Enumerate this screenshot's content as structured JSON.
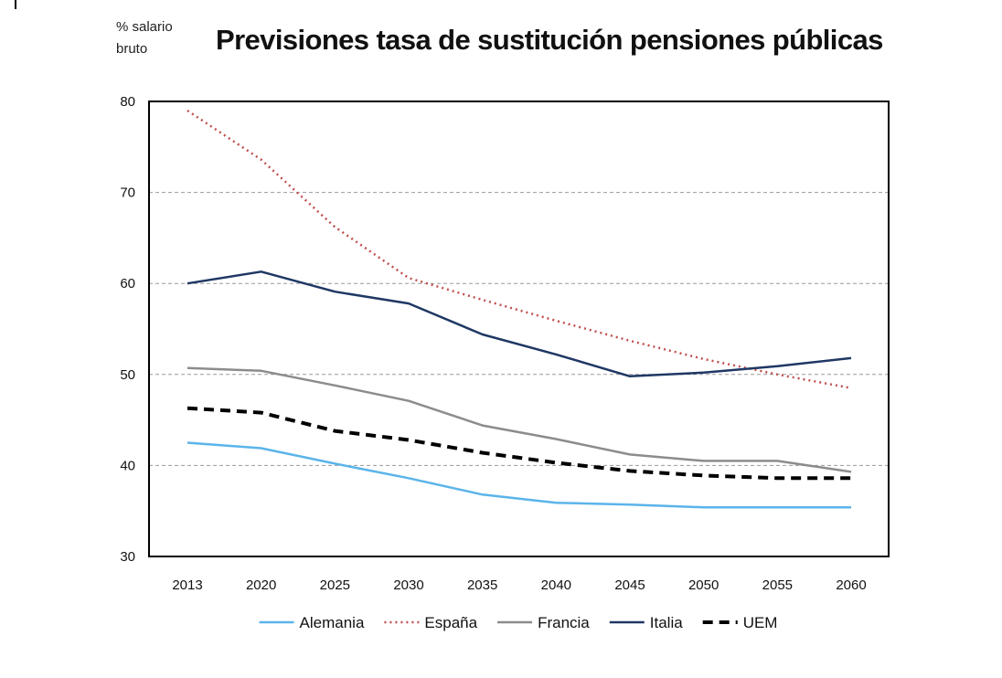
{
  "chart_data": {
    "type": "line",
    "title": "Previsiones tasa de sustitución pensiones públicas",
    "unit_label": [
      "% salario",
      "bruto"
    ],
    "xlabel": "",
    "ylabel": "",
    "x": [
      "2013",
      "2020",
      "2025",
      "2030",
      "2035",
      "2040",
      "2045",
      "2050",
      "2055",
      "2060"
    ],
    "ylim": [
      30,
      80
    ],
    "yticks": [
      30,
      40,
      50,
      60,
      70,
      80
    ],
    "grid": "horizontal dashed",
    "legend_position": "bottom",
    "series": [
      {
        "name": "Alemania",
        "color": "#5bb4ea",
        "style": "solid",
        "values": [
          42.5,
          41.9,
          40.2,
          38.6,
          36.8,
          35.9,
          35.7,
          35.4,
          35.4,
          35.4
        ]
      },
      {
        "name": "España",
        "color": "#c0504d",
        "style": "dotted",
        "values": [
          79.0,
          73.6,
          66.2,
          60.6,
          58.2,
          55.9,
          53.7,
          51.7,
          50.0,
          48.5
        ]
      },
      {
        "name": "Francia",
        "color": "#8c8c8c",
        "style": "solid",
        "values": [
          50.7,
          50.4,
          48.8,
          47.1,
          44.4,
          42.9,
          41.2,
          40.5,
          40.5,
          39.3
        ]
      },
      {
        "name": "Italia",
        "color": "#1f3864",
        "style": "solid",
        "values": [
          60.0,
          61.3,
          59.1,
          57.8,
          54.4,
          52.2,
          49.8,
          50.2,
          50.9,
          51.8
        ]
      },
      {
        "name": "UEM",
        "color": "#000000",
        "style": "dashed",
        "values": [
          46.3,
          45.8,
          43.8,
          42.8,
          41.4,
          40.3,
          39.4,
          38.9,
          38.6,
          38.6
        ]
      }
    ]
  }
}
